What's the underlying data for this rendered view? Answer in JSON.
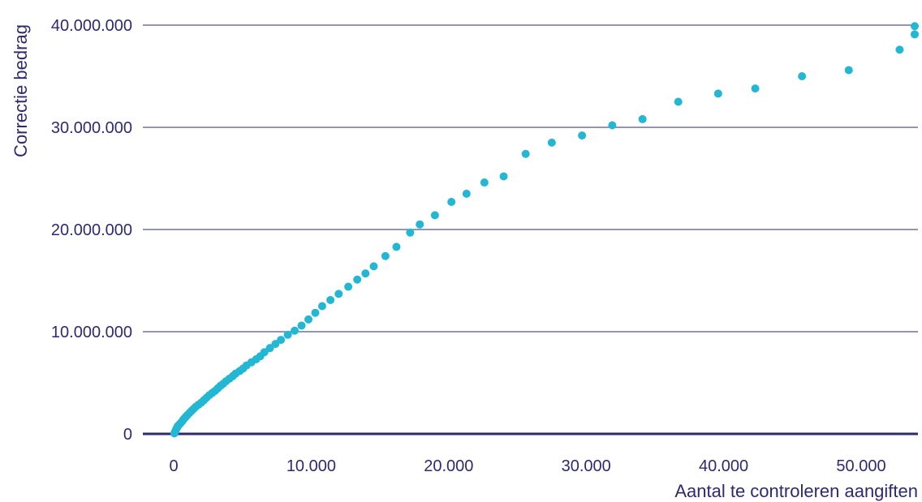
{
  "chart_data": {
    "type": "scatter",
    "title": "",
    "xlabel": "Aantal te controleren  aangiften",
    "ylabel": "Correctie bedrag",
    "xlim": [
      -2000,
      54000
    ],
    "ylim": [
      0,
      40000000
    ],
    "grid": true,
    "colors": {
      "points": "#23b7d3",
      "grid": "#2e2a6e",
      "axis": "#2e2a6e",
      "text": "#2e2a6e"
    },
    "x_ticks": [
      {
        "value": 0,
        "label": "0"
      },
      {
        "value": 10000,
        "label": "10.000"
      },
      {
        "value": 20000,
        "label": "20.000"
      },
      {
        "value": 30000,
        "label": "30.000"
      },
      {
        "value": 40000,
        "label": "40.000"
      },
      {
        "value": 50000,
        "label": "50.000"
      }
    ],
    "y_ticks": [
      {
        "value": 0,
        "label": "0"
      },
      {
        "value": 10000000,
        "label": "10.000.000"
      },
      {
        "value": 20000000,
        "label": "20.000.000"
      },
      {
        "value": 30000000,
        "label": "30.000.000"
      },
      {
        "value": 40000000,
        "label": "40.000.000"
      }
    ],
    "series": [
      {
        "points": [
          [
            50,
            50000
          ],
          [
            100,
            200000
          ],
          [
            150,
            350000
          ],
          [
            200,
            500000
          ],
          [
            250,
            620000
          ],
          [
            300,
            760000
          ],
          [
            400,
            900000
          ],
          [
            500,
            1050000
          ],
          [
            600,
            1200000
          ],
          [
            700,
            1400000
          ],
          [
            800,
            1550000
          ],
          [
            900,
            1700000
          ],
          [
            1000,
            1850000
          ],
          [
            1150,
            2050000
          ],
          [
            1300,
            2250000
          ],
          [
            1450,
            2450000
          ],
          [
            1600,
            2650000
          ],
          [
            1800,
            2850000
          ],
          [
            2000,
            3050000
          ],
          [
            2200,
            3300000
          ],
          [
            2400,
            3550000
          ],
          [
            2600,
            3800000
          ],
          [
            2800,
            4000000
          ],
          [
            3000,
            4200000
          ],
          [
            3200,
            4450000
          ],
          [
            3400,
            4700000
          ],
          [
            3600,
            4900000
          ],
          [
            3800,
            5150000
          ],
          [
            4050,
            5400000
          ],
          [
            4300,
            5650000
          ],
          [
            4500,
            5900000
          ],
          [
            4800,
            6150000
          ],
          [
            5050,
            6400000
          ],
          [
            5300,
            6700000
          ],
          [
            5650,
            7000000
          ],
          [
            6000,
            7300000
          ],
          [
            6300,
            7600000
          ],
          [
            6600,
            8000000
          ],
          [
            7000,
            8400000
          ],
          [
            7400,
            8800000
          ],
          [
            7800,
            9200000
          ],
          [
            8300,
            9700000
          ],
          [
            8800,
            10100000
          ],
          [
            9300,
            10600000
          ],
          [
            9800,
            11200000
          ],
          [
            10300,
            11850000
          ],
          [
            10800,
            12500000
          ],
          [
            11400,
            13100000
          ],
          [
            12000,
            13700000
          ],
          [
            12700,
            14400000
          ],
          [
            13350,
            15100000
          ],
          [
            13950,
            15700000
          ],
          [
            14550,
            16400000
          ],
          [
            15400,
            17400000
          ],
          [
            16200,
            18300000
          ],
          [
            17200,
            19700000
          ],
          [
            17900,
            20500000
          ],
          [
            19000,
            21400000
          ],
          [
            20200,
            22700000
          ],
          [
            21300,
            23500000
          ],
          [
            22600,
            24600000
          ],
          [
            24000,
            25200000
          ],
          [
            25600,
            27400000
          ],
          [
            27500,
            28500000
          ],
          [
            29700,
            29200000
          ],
          [
            31900,
            30200000
          ],
          [
            34100,
            30800000
          ],
          [
            36700,
            32500000
          ],
          [
            39600,
            33300000
          ],
          [
            42300,
            33800000
          ],
          [
            45700,
            35000000
          ],
          [
            49100,
            35600000
          ],
          [
            52800,
            37600000
          ],
          [
            55500,
            39100000
          ],
          [
            56800,
            39900000
          ]
        ]
      }
    ]
  }
}
